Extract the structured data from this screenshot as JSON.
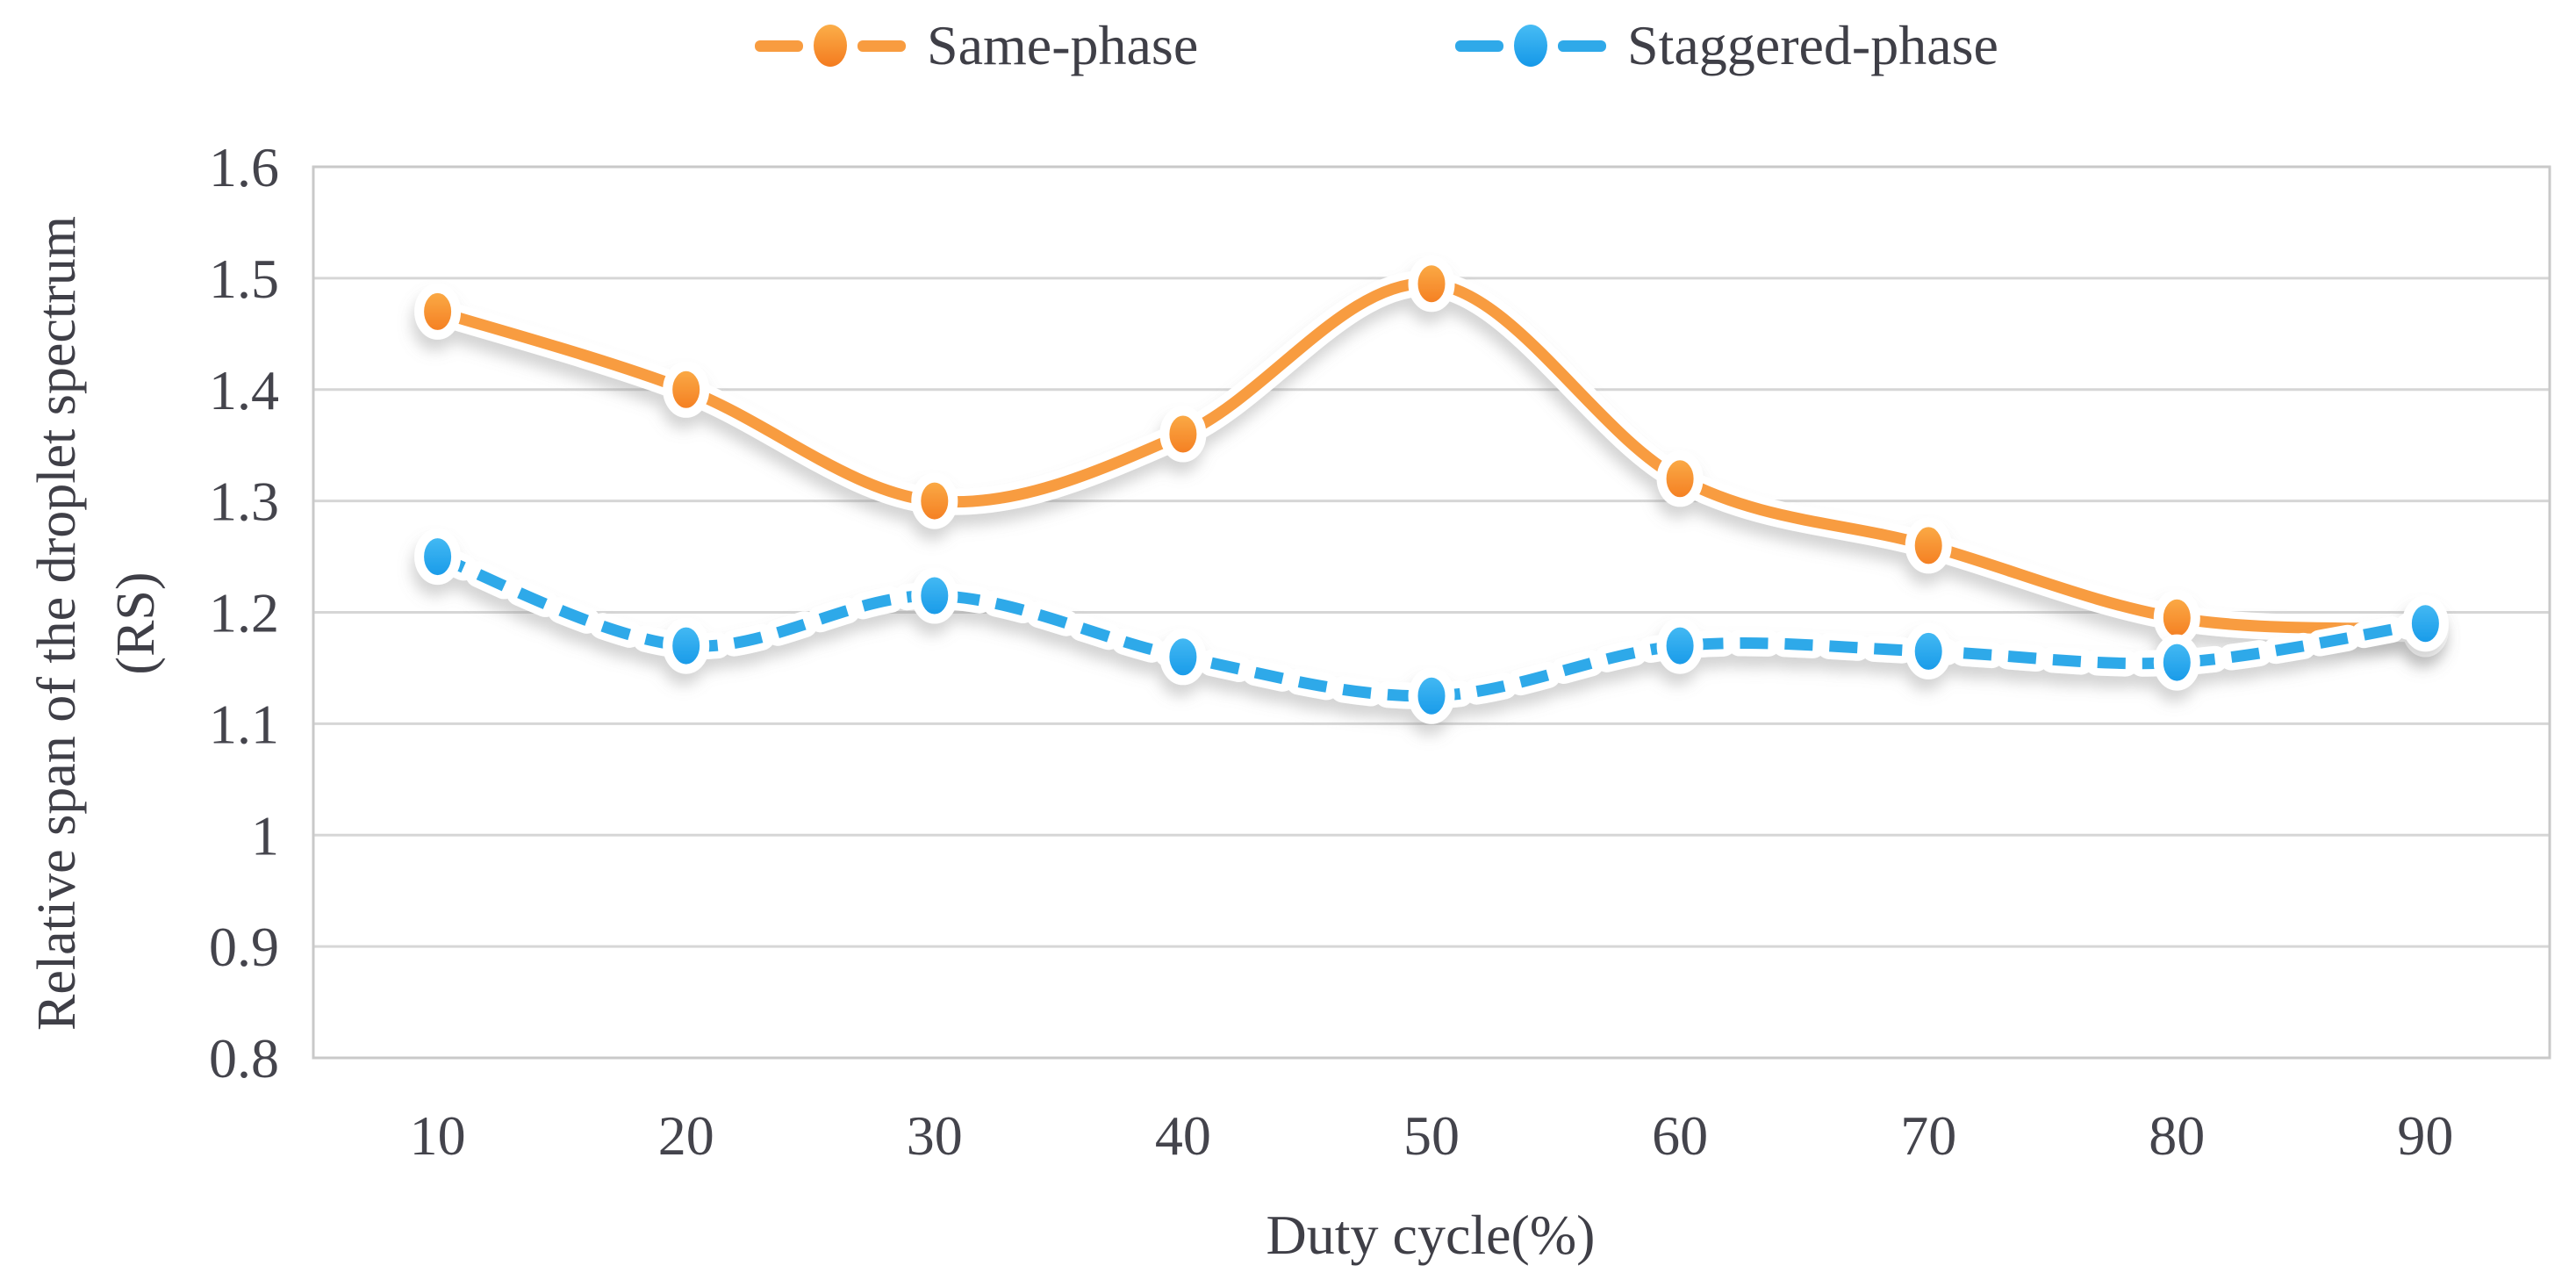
{
  "chart_data": {
    "type": "line",
    "title": "",
    "x_label": "Duty cycle(%)",
    "y_label": "Relative span of the droplet spectrum (RS)",
    "y_label_lines": [
      "Relative span of the droplet spectrum",
      "(RS)"
    ],
    "categories": [
      "10",
      "20",
      "30",
      "40",
      "50",
      "60",
      "70",
      "80",
      "90"
    ],
    "series": [
      {
        "name": "Same-phase",
        "style": "solid",
        "color": "#F89C40",
        "marker_gradient": [
          "#FBAE49",
          "#F47B1F"
        ],
        "values": [
          1.47,
          1.4,
          1.3,
          1.36,
          1.495,
          1.32,
          1.26,
          1.195,
          1.185
        ]
      },
      {
        "name": "Staggered-phase",
        "style": "dashed",
        "color": "#2FA9E9",
        "marker_gradient": [
          "#47BCF4",
          "#1598E8"
        ],
        "values": [
          1.25,
          1.17,
          1.215,
          1.16,
          1.125,
          1.17,
          1.165,
          1.155,
          1.19
        ]
      }
    ],
    "ylim": [
      0.8,
      1.6
    ],
    "yticks": [
      "1.6",
      "1.5",
      "1.4",
      "1.3",
      "1.2",
      "1.1",
      "1",
      "0.9",
      "0.8"
    ],
    "grid": "horizontal",
    "legend_position": "top-center",
    "gridline_color": "#D6D6D6",
    "border_color": "#C9C9C9",
    "text_color": "#44444C"
  }
}
